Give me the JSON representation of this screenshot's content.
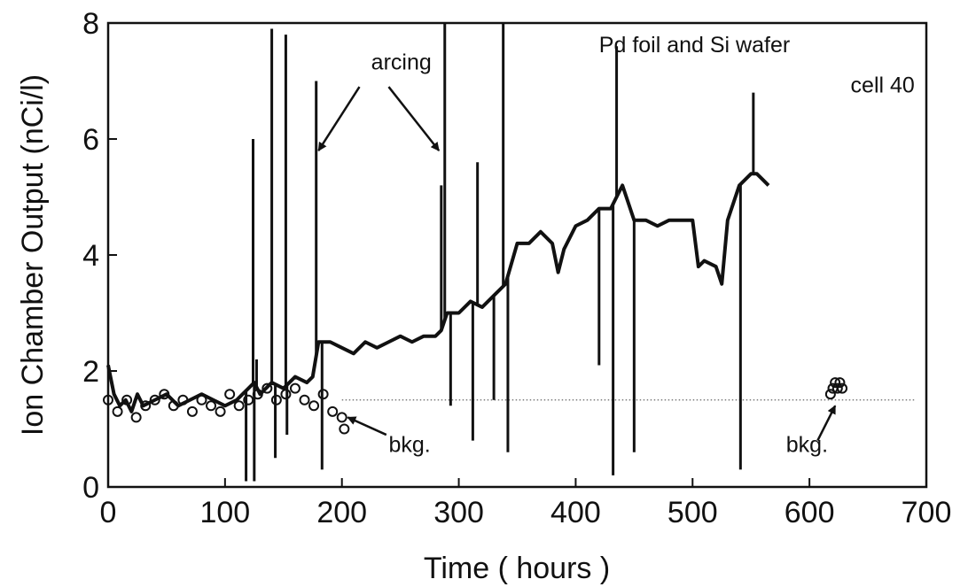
{
  "chart_data": {
    "type": "line",
    "title": "",
    "xlabel": "Time ( hours )",
    "ylabel": "Ion Chamber Output  (nCi/l)",
    "xlim": [
      0,
      700
    ],
    "ylim": [
      0,
      8
    ],
    "grid": false,
    "x_ticks": [
      "0",
      "100",
      "200",
      "300",
      "400",
      "500",
      "600",
      "700"
    ],
    "y_ticks": [
      "0",
      "2",
      "4",
      "6",
      "8"
    ],
    "reference_line": {
      "y": 1.5,
      "x_range": [
        200,
        690
      ],
      "style": "dotted"
    },
    "series": [
      {
        "kind": "trace",
        "x": [
          0,
          5,
          10,
          15,
          20,
          25,
          30,
          40,
          50,
          60,
          70,
          80,
          90,
          100,
          110,
          115,
          120,
          125,
          130,
          140,
          150,
          160,
          170,
          175,
          180,
          190,
          200,
          210,
          220,
          230,
          240,
          250,
          260,
          270,
          280,
          285,
          290,
          300,
          310,
          320,
          330,
          340,
          350,
          360,
          370,
          380,
          385,
          390,
          400,
          410,
          420,
          430,
          440,
          450,
          460,
          470,
          480,
          490,
          500,
          505,
          510,
          520,
          525,
          530,
          540,
          550,
          555,
          560,
          565
        ],
        "y": [
          2.1,
          1.6,
          1.4,
          1.5,
          1.3,
          1.6,
          1.4,
          1.5,
          1.6,
          1.4,
          1.5,
          1.6,
          1.5,
          1.4,
          1.5,
          1.6,
          1.7,
          1.8,
          1.6,
          1.8,
          1.7,
          1.9,
          1.8,
          1.9,
          2.5,
          2.5,
          2.4,
          2.3,
          2.5,
          2.4,
          2.5,
          2.6,
          2.5,
          2.6,
          2.6,
          2.7,
          3.0,
          3.0,
          3.2,
          3.1,
          3.3,
          3.5,
          4.2,
          4.2,
          4.4,
          4.2,
          3.7,
          4.1,
          4.5,
          4.6,
          4.8,
          4.8,
          5.2,
          4.6,
          4.6,
          4.5,
          4.6,
          4.6,
          4.6,
          3.8,
          3.9,
          3.8,
          3.5,
          4.6,
          5.2,
          5.4,
          5.4,
          5.3,
          5.2
        ]
      },
      {
        "kind": "spikes",
        "x": [
          118,
          124,
          125,
          127,
          140,
          143,
          152,
          153,
          178,
          183,
          285,
          288,
          293,
          312,
          316,
          330,
          338,
          342,
          420,
          432,
          435,
          450,
          541,
          552
        ],
        "y": [
          0.1,
          6.0,
          0.1,
          2.2,
          7.9,
          0.5,
          7.8,
          0.9,
          7.0,
          0.3,
          5.2,
          8.0,
          1.4,
          0.8,
          5.6,
          1.5,
          8.0,
          0.6,
          2.1,
          0.2,
          7.6,
          0.6,
          0.3,
          6.8
        ]
      },
      {
        "name": "bkg.",
        "kind": "markers",
        "x": [
          0,
          8,
          16,
          24,
          32,
          40,
          48,
          56,
          64,
          72,
          80,
          88,
          96,
          104,
          112,
          120,
          128,
          136,
          144,
          152,
          160,
          168,
          176,
          184,
          192,
          200,
          202,
          618,
          620,
          622,
          624,
          626,
          628
        ],
        "y": [
          1.5,
          1.3,
          1.5,
          1.2,
          1.4,
          1.5,
          1.6,
          1.4,
          1.5,
          1.3,
          1.5,
          1.4,
          1.3,
          1.6,
          1.4,
          1.5,
          1.6,
          1.7,
          1.5,
          1.6,
          1.7,
          1.5,
          1.4,
          1.6,
          1.3,
          1.2,
          1.0,
          1.6,
          1.7,
          1.8,
          1.7,
          1.8,
          1.7
        ]
      }
    ],
    "annotations": [
      {
        "text": "Pd foil and Si wafer",
        "x": 420,
        "y": 7.5
      },
      {
        "text": "cell 40",
        "x": 690,
        "y": 6.8
      },
      {
        "text": "arcing",
        "x": 225,
        "y": 7.2
      },
      {
        "text": "bkg.",
        "x": 240,
        "y": 0.6
      },
      {
        "text": "bkg.",
        "x": 580,
        "y": 0.6
      }
    ],
    "arrows": [
      {
        "label": "arcing",
        "from": [
          215,
          6.9
        ],
        "to": [
          180,
          5.8
        ]
      },
      {
        "label": "arcing",
        "from": [
          240,
          6.9
        ],
        "to": [
          283,
          5.8
        ]
      },
      {
        "label": "bkg.",
        "from": [
          238,
          0.9
        ],
        "to": [
          205,
          1.2
        ]
      },
      {
        "label": "bkg.",
        "from": [
          607,
          0.8
        ],
        "to": [
          622,
          1.4
        ]
      }
    ]
  }
}
